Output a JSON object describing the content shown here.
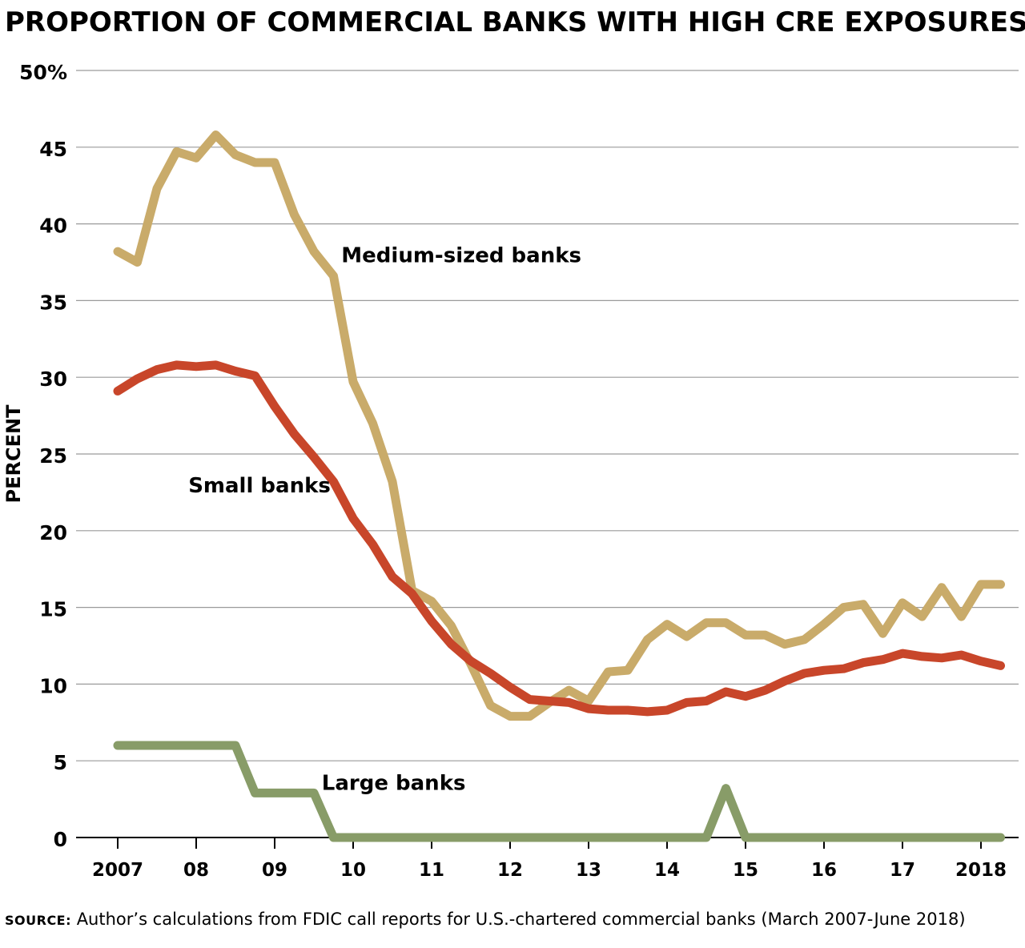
{
  "chart_data": {
    "type": "line",
    "title": "PROPORTION OF COMMERCIAL BANKS WITH HIGH CRE EXPOSURES",
    "ylabel": "PERCENT",
    "xlabel": "",
    "ylim": [
      0,
      50
    ],
    "yticks": [
      0,
      5,
      10,
      15,
      20,
      25,
      30,
      35,
      40,
      45,
      50
    ],
    "ytick_labels": [
      "0",
      "5",
      "10",
      "15",
      "20",
      "25",
      "30",
      "35",
      "40",
      "45",
      "50%"
    ],
    "xlim": [
      2007,
      2018.5
    ],
    "xticks": [
      2007,
      2008,
      2009,
      2010,
      2011,
      2012,
      2013,
      2014,
      2015,
      2016,
      2017,
      2018
    ],
    "xtick_labels": [
      "2007",
      "08",
      "09",
      "10",
      "11",
      "12",
      "13",
      "14",
      "15",
      "16",
      "17",
      "2018"
    ],
    "grid": true,
    "series": [
      {
        "name": "Medium-sized banks",
        "color": "#c9ab6a",
        "x": [
          2007.0,
          2007.25,
          2007.5,
          2007.75,
          2008.0,
          2008.25,
          2008.5,
          2008.75,
          2009.0,
          2009.25,
          2009.5,
          2009.75,
          2010.0,
          2010.25,
          2010.5,
          2010.75,
          2011.0,
          2011.25,
          2011.5,
          2011.75,
          2012.0,
          2012.25,
          2012.5,
          2012.75,
          2013.0,
          2013.25,
          2013.5,
          2013.75,
          2014.0,
          2014.25,
          2014.5,
          2014.75,
          2015.0,
          2015.25,
          2015.5,
          2015.75,
          2016.0,
          2016.25,
          2016.5,
          2016.75,
          2017.0,
          2017.25,
          2017.5,
          2017.75,
          2018.0,
          2018.25
        ],
        "values": [
          38.2,
          37.5,
          42.3,
          44.7,
          44.3,
          45.8,
          44.5,
          44.0,
          44.0,
          40.6,
          38.2,
          36.6,
          29.7,
          27.0,
          23.2,
          16.1,
          15.4,
          13.8,
          11.3,
          8.6,
          7.9,
          7.9,
          8.8,
          9.6,
          8.9,
          10.8,
          10.9,
          12.9,
          13.9,
          13.1,
          14.0,
          14.0,
          13.2,
          13.2,
          12.6,
          12.9,
          13.9,
          15.0,
          15.2,
          13.3,
          15.3,
          14.4,
          16.3,
          14.4,
          16.5,
          16.5
        ]
      },
      {
        "name": "Small banks",
        "color": "#c8462a",
        "x": [
          2007.0,
          2007.25,
          2007.5,
          2007.75,
          2008.0,
          2008.25,
          2008.5,
          2008.75,
          2009.0,
          2009.25,
          2009.5,
          2009.75,
          2010.0,
          2010.25,
          2010.5,
          2010.75,
          2011.0,
          2011.25,
          2011.5,
          2011.75,
          2012.0,
          2012.25,
          2012.5,
          2012.75,
          2013.0,
          2013.25,
          2013.5,
          2013.75,
          2014.0,
          2014.25,
          2014.5,
          2014.75,
          2015.0,
          2015.25,
          2015.5,
          2015.75,
          2016.0,
          2016.25,
          2016.5,
          2016.75,
          2017.0,
          2017.25,
          2017.5,
          2017.75,
          2018.0,
          2018.25
        ],
        "values": [
          29.1,
          29.9,
          30.5,
          30.8,
          30.7,
          30.8,
          30.4,
          30.1,
          28.1,
          26.3,
          24.8,
          23.2,
          20.8,
          19.1,
          17.0,
          15.9,
          14.1,
          12.6,
          11.5,
          10.7,
          9.8,
          9.0,
          8.9,
          8.8,
          8.4,
          8.3,
          8.3,
          8.2,
          8.3,
          8.8,
          8.9,
          9.5,
          9.2,
          9.6,
          10.2,
          10.7,
          10.9,
          11.0,
          11.4,
          11.6,
          12.0,
          11.8,
          11.7,
          11.9,
          11.5,
          11.2
        ]
      },
      {
        "name": "Large banks",
        "color": "#889c68",
        "x": [
          2007.0,
          2007.25,
          2007.5,
          2007.75,
          2008.0,
          2008.25,
          2008.5,
          2008.75,
          2009.0,
          2009.25,
          2009.5,
          2009.75,
          2010.0,
          2010.25,
          2010.5,
          2010.75,
          2011.0,
          2011.25,
          2011.5,
          2011.75,
          2012.0,
          2012.25,
          2012.5,
          2012.75,
          2013.0,
          2013.25,
          2013.5,
          2013.75,
          2014.0,
          2014.25,
          2014.5,
          2014.75,
          2015.0,
          2015.25,
          2015.5,
          2015.75,
          2016.0,
          2016.25,
          2016.5,
          2016.75,
          2017.0,
          2017.25,
          2017.5,
          2017.75,
          2018.0,
          2018.25
        ],
        "values": [
          6.0,
          6.0,
          6.0,
          6.0,
          6.0,
          6.0,
          6.0,
          2.9,
          2.9,
          2.9,
          2.9,
          0.0,
          0.0,
          0.0,
          0.0,
          0.0,
          0.0,
          0.0,
          0.0,
          0.0,
          0.0,
          0.0,
          0.0,
          0.0,
          0.0,
          0.0,
          0.0,
          0.0,
          0.0,
          0.0,
          0.0,
          3.2,
          0.0,
          0.0,
          0.0,
          0.0,
          0.0,
          0.0,
          0.0,
          0.0,
          0.0,
          0.0,
          0.0,
          0.0,
          0.0,
          0.0
        ]
      }
    ],
    "annotations": [
      {
        "text": "Medium-sized banks",
        "x": 2009.85,
        "y": 37.5
      },
      {
        "text": "Small banks",
        "x": 2007.9,
        "y": 22.5
      },
      {
        "text": "Large banks",
        "x": 2009.6,
        "y": 3.1
      }
    ]
  },
  "source": {
    "label": "SOURCE:",
    "text": " Author’s calculations from FDIC call reports for U.S.-chartered commercial banks (March 2007-June 2018)"
  }
}
